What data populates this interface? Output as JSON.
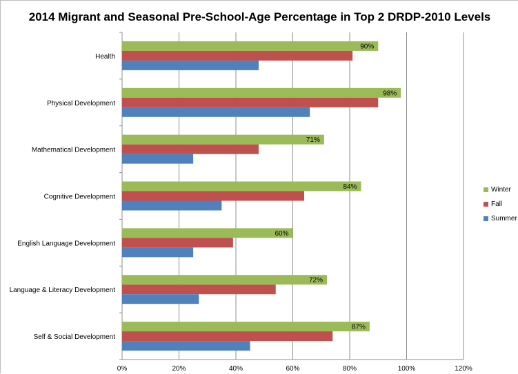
{
  "chart_data": {
    "type": "bar",
    "orientation": "horizontal",
    "title": "2014 Migrant and Seasonal Pre-School-Age Percentage in Top 2 DRDP-2010 Levels",
    "categories": [
      "Health",
      "Physical Development",
      "Mathematical Development",
      "Cognitive Development",
      "English Language Development",
      "Language & Literacy Development",
      "Self & Social Development"
    ],
    "series": [
      {
        "name": "Winter",
        "color": "#9bbb59",
        "values": [
          90,
          98,
          71,
          84,
          60,
          72,
          87
        ]
      },
      {
        "name": "Fall",
        "color": "#c0504d",
        "values": [
          81,
          90,
          48,
          64,
          39,
          54,
          74
        ]
      },
      {
        "name": "Summer",
        "color": "#4f81bd",
        "values": [
          48,
          66,
          25,
          35,
          25,
          27,
          45
        ]
      }
    ],
    "data_labels": {
      "series": "Winter",
      "labels": [
        "90%",
        "98%",
        "71%",
        "84%",
        "60%",
        "72%",
        "87%"
      ]
    },
    "xlim": [
      0,
      120
    ],
    "xticks": [
      "0%",
      "20%",
      "40%",
      "60%",
      "80%",
      "100%",
      "120%"
    ],
    "xlabel": "",
    "ylabel": "",
    "grid": true,
    "legend_position": "right"
  }
}
